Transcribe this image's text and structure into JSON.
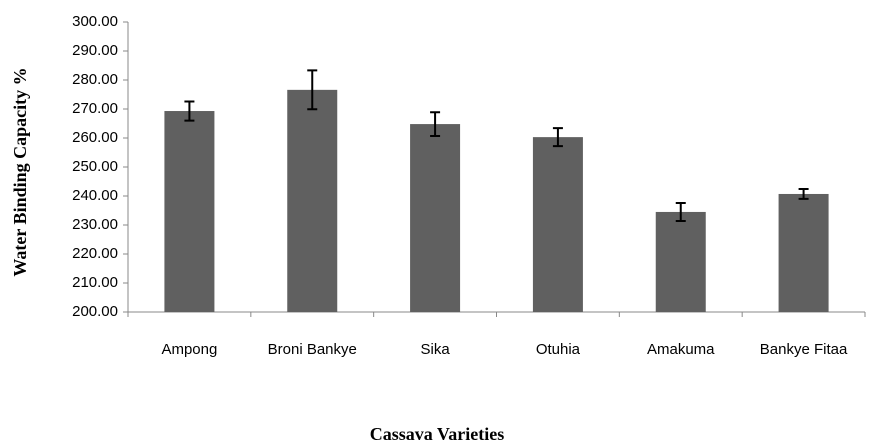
{
  "chart_data": {
    "type": "bar",
    "x_label": "Cassava Varieties",
    "y_label": "Water Binding Capacity %",
    "categories": [
      "Ampong",
      "Broni Bankye",
      "Sika",
      "Otuhia",
      "Amakuma",
      "Bankye Fitaa"
    ],
    "values": [
      269.3,
      276.6,
      264.8,
      260.3,
      234.5,
      240.7
    ],
    "errors": [
      3.3,
      6.7,
      4.1,
      3.1,
      3.1,
      1.7
    ],
    "color": "#606060",
    "ylim": [
      200,
      300
    ],
    "yticks": [
      {
        "value": 200,
        "label": "200.00"
      },
      {
        "value": 210,
        "label": "210.00"
      },
      {
        "value": 220,
        "label": "220.00"
      },
      {
        "value": 230,
        "label": "230.00"
      },
      {
        "value": 240,
        "label": "240.00"
      },
      {
        "value": 250,
        "label": "250.00"
      },
      {
        "value": 260,
        "label": "260.00"
      },
      {
        "value": 270,
        "label": "270.00"
      },
      {
        "value": 280,
        "label": "280.00"
      },
      {
        "value": 290,
        "label": "290.00"
      },
      {
        "value": 300,
        "label": "300.00"
      }
    ],
    "grid": false
  }
}
